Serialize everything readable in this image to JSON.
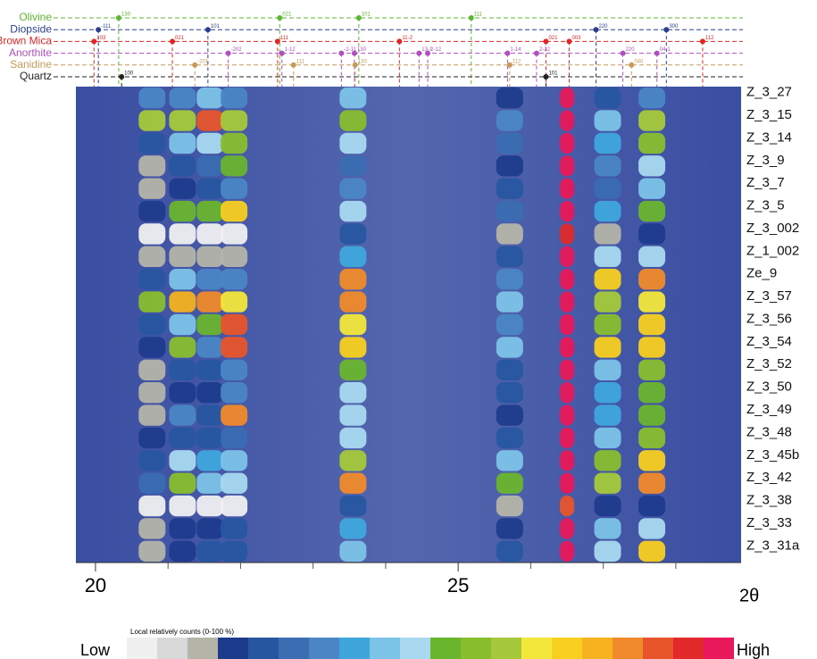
{
  "chart_data": {
    "type": "heatmap",
    "x_label": "2θ",
    "xlim": [
      19.73,
      28.9
    ],
    "xticks": [
      20,
      25
    ],
    "xminorticks": [
      21,
      22,
      23,
      24,
      26,
      27,
      28
    ],
    "x": [
      20.78,
      21.2,
      21.58,
      21.91,
      23.55,
      25.71,
      26.5,
      27.06,
      27.67
    ],
    "categories": [
      "Z_3_27",
      "Z_3_15",
      "Z_3_14",
      "Z_3_9",
      "Z_3_7",
      "Z_3_5",
      "Z_3_002",
      "Z_1_002",
      "Ze_9",
      "Z_3_57",
      "Z_3_56",
      "Z_3_54",
      "Z_3_52",
      "Z_3_50",
      "Z_3_49",
      "Z_3_48",
      "Z_3_45b",
      "Z_3_42",
      "Z_3_38",
      "Z_3_33",
      "Z_3_31a"
    ],
    "values": [
      [
        30,
        30,
        40,
        30,
        40,
        15,
        100,
        20,
        30
      ],
      [
        60,
        60,
        85,
        60,
        55,
        30,
        100,
        40,
        60
      ],
      [
        20,
        40,
        45,
        55,
        45,
        25,
        100,
        35,
        55
      ],
      [
        10,
        20,
        25,
        50,
        25,
        15,
        100,
        30,
        45
      ],
      [
        10,
        15,
        20,
        30,
        30,
        20,
        100,
        25,
        40
      ],
      [
        15,
        50,
        50,
        70,
        45,
        25,
        100,
        35,
        50
      ],
      [
        0,
        0,
        0,
        0,
        20,
        10,
        90,
        10,
        15
      ],
      [
        10,
        10,
        10,
        10,
        35,
        20,
        100,
        45,
        45
      ],
      [
        20,
        40,
        30,
        30,
        80,
        30,
        100,
        70,
        80
      ],
      [
        55,
        75,
        80,
        65,
        80,
        40,
        100,
        60,
        65
      ],
      [
        20,
        40,
        50,
        85,
        65,
        30,
        100,
        55,
        70
      ],
      [
        15,
        55,
        30,
        85,
        70,
        40,
        100,
        70,
        70
      ],
      [
        10,
        20,
        20,
        30,
        50,
        20,
        100,
        40,
        55
      ],
      [
        10,
        15,
        15,
        30,
        45,
        20,
        100,
        35,
        50
      ],
      [
        10,
        30,
        20,
        80,
        45,
        15,
        100,
        35,
        50
      ],
      [
        15,
        20,
        20,
        25,
        45,
        20,
        100,
        40,
        55
      ],
      [
        20,
        45,
        35,
        40,
        60,
        40,
        100,
        55,
        70
      ],
      [
        25,
        55,
        40,
        45,
        80,
        50,
        100,
        60,
        80
      ],
      [
        0,
        0,
        0,
        0,
        20,
        10,
        85,
        15,
        15
      ],
      [
        10,
        15,
        15,
        20,
        35,
        15,
        100,
        40,
        45
      ],
      [
        10,
        15,
        20,
        20,
        40,
        20,
        100,
        45,
        70
      ]
    ],
    "colorscale": [
      "#f0f0f0",
      "#d9d9d9",
      "#b4b4a8",
      "#1d3b8c",
      "#2756a0",
      "#3a6db2",
      "#4a86c5",
      "#3fa6dc",
      "#7cc3e8",
      "#a9d9f0",
      "#6ab52e",
      "#88be2e",
      "#a5c93a",
      "#f2e73a",
      "#f8cf1f",
      "#f6b21f",
      "#f08a2a",
      "#e8552b",
      "#e22a2a",
      "#e8185a"
    ],
    "colorbar_title": "Local relatively counts (0-100 %)",
    "colorbar_low": "Low",
    "colorbar_high": "High",
    "phases": [
      {
        "name": "Olivine",
        "color": "#5cb82e",
        "reflections": [
          {
            "x": 20.32,
            "label": "130"
          },
          {
            "x": 22.54,
            "label": "021"
          },
          {
            "x": 23.63,
            "label": "101"
          },
          {
            "x": 25.18,
            "label": "111"
          }
        ]
      },
      {
        "name": "Diopside",
        "color": "#2a3f8f",
        "reflections": [
          {
            "x": 20.04,
            "label": "-111"
          },
          {
            "x": 21.55,
            "label": "101"
          },
          {
            "x": 26.9,
            "label": "220"
          },
          {
            "x": 27.87,
            "label": "300"
          }
        ]
      },
      {
        "name": "Brown Mica",
        "color": "#e02626",
        "reflections": [
          {
            "x": 19.98,
            "label": "103"
          },
          {
            "x": 21.06,
            "label": "021"
          },
          {
            "x": 22.51,
            "label": "111"
          },
          {
            "x": 24.19,
            "label": "11-2"
          },
          {
            "x": 26.21,
            "label": "021"
          },
          {
            "x": 26.53,
            "label": "003"
          },
          {
            "x": 28.37,
            "label": "112"
          }
        ]
      },
      {
        "name": "Anorthite",
        "color": "#b04fc0",
        "reflections": [
          {
            "x": 21.83,
            "label": "-202"
          },
          {
            "x": 22.57,
            "label": "1-12"
          },
          {
            "x": 23.39,
            "label": "-2-11"
          },
          {
            "x": 23.57,
            "label": "130"
          },
          {
            "x": 24.46,
            "label": "13-1"
          },
          {
            "x": 24.58,
            "label": "2-12"
          },
          {
            "x": 25.68,
            "label": "1-14"
          },
          {
            "x": 26.08,
            "label": "2-22"
          },
          {
            "x": 27.27,
            "label": "220"
          },
          {
            "x": 27.74,
            "label": "04-1"
          }
        ]
      },
      {
        "name": "Sanidine",
        "color": "#c89a5a",
        "reflections": [
          {
            "x": 21.37,
            "label": "-201"
          },
          {
            "x": 22.73,
            "label": "111"
          },
          {
            "x": 23.58,
            "label": "130"
          },
          {
            "x": 25.71,
            "label": "112"
          },
          {
            "x": 27.39,
            "label": "040"
          }
        ]
      },
      {
        "name": "Quartz",
        "color": "#222222",
        "reflections": [
          {
            "x": 20.36,
            "label": "100"
          },
          {
            "x": 26.21,
            "label": "101"
          }
        ]
      }
    ]
  }
}
